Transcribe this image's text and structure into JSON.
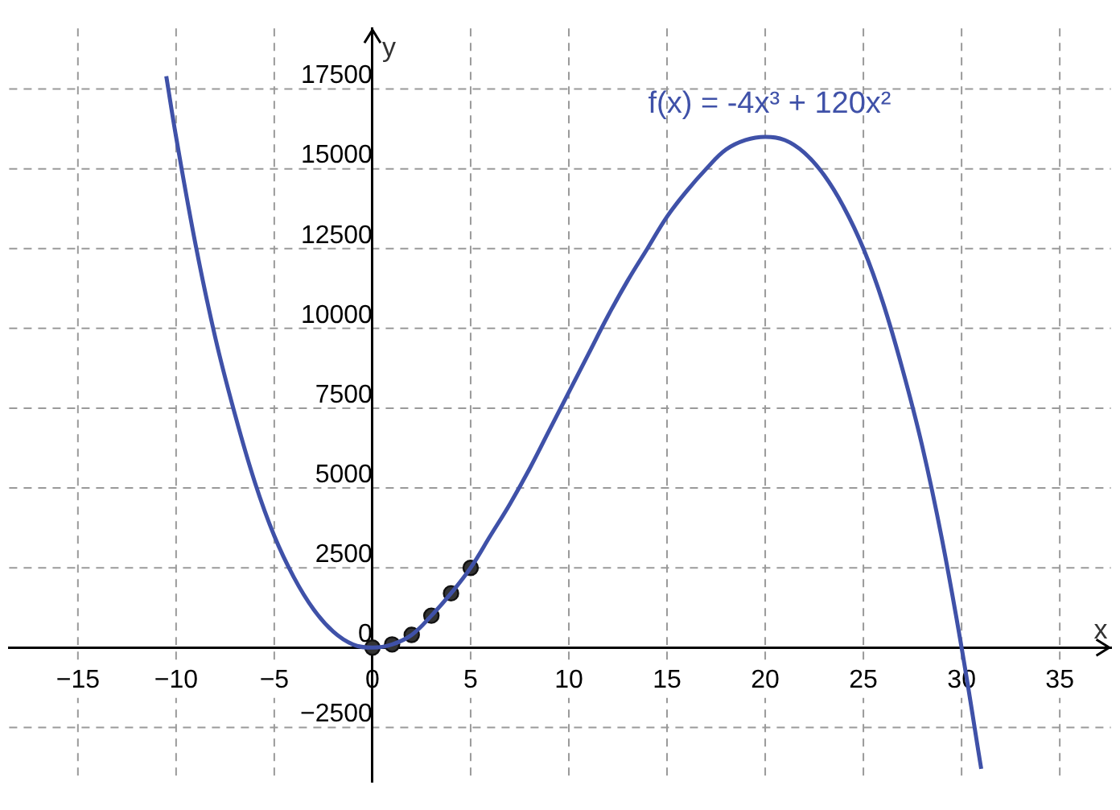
{
  "chart_data": {
    "type": "line",
    "xlabel": "x",
    "ylabel": "y",
    "grid": true,
    "legend": false,
    "xlim": [
      -18.5,
      37.6
    ],
    "ylim": [
      -4200,
      19400
    ],
    "xticks": [
      {
        "value": -15,
        "label": "−15"
      },
      {
        "value": -10,
        "label": "−10"
      },
      {
        "value": -5,
        "label": "−5"
      },
      0,
      5,
      10,
      15,
      20,
      25,
      30,
      35
    ],
    "yticks": [
      {
        "value": -2500,
        "label": "−2500"
      },
      0,
      2500,
      5000,
      7500,
      10000,
      12500,
      15000,
      17500
    ],
    "series": [
      {
        "name": "f(x) = -4x³ + 120x²",
        "color": "#3f51a8",
        "marker": "none",
        "line_style": "solid",
        "x": [
          -10.5,
          -10,
          -9,
          -8,
          -7,
          -6,
          -5,
          -4,
          -3,
          -2,
          -1,
          0,
          1,
          2,
          3,
          4,
          5,
          6,
          7,
          8,
          9,
          10,
          11,
          12,
          13,
          14,
          15,
          16,
          17,
          18,
          19,
          20,
          21,
          22,
          23,
          24,
          25,
          26,
          27,
          28,
          29,
          30,
          31
        ],
        "values": [
          17900,
          16000,
          12600,
          9700,
          7300,
          5200,
          3500,
          2200,
          1200,
          500,
          100,
          0,
          100,
          400,
          1000,
          1700,
          2500,
          3500,
          4500,
          5600,
          6800,
          8000,
          9200,
          10400,
          11500,
          12500,
          13500,
          14300,
          15000,
          15600,
          15900,
          16000,
          15900,
          15500,
          14800,
          13800,
          12500,
          10800,
          8700,
          6300,
          3400,
          0,
          -3800
        ]
      },
      {
        "type": "scatter",
        "color": "#333333",
        "marker": "circle",
        "x": [
          0,
          1,
          2,
          3,
          4,
          5
        ],
        "values": [
          0,
          100,
          400,
          1000,
          1700,
          2500
        ]
      }
    ]
  }
}
